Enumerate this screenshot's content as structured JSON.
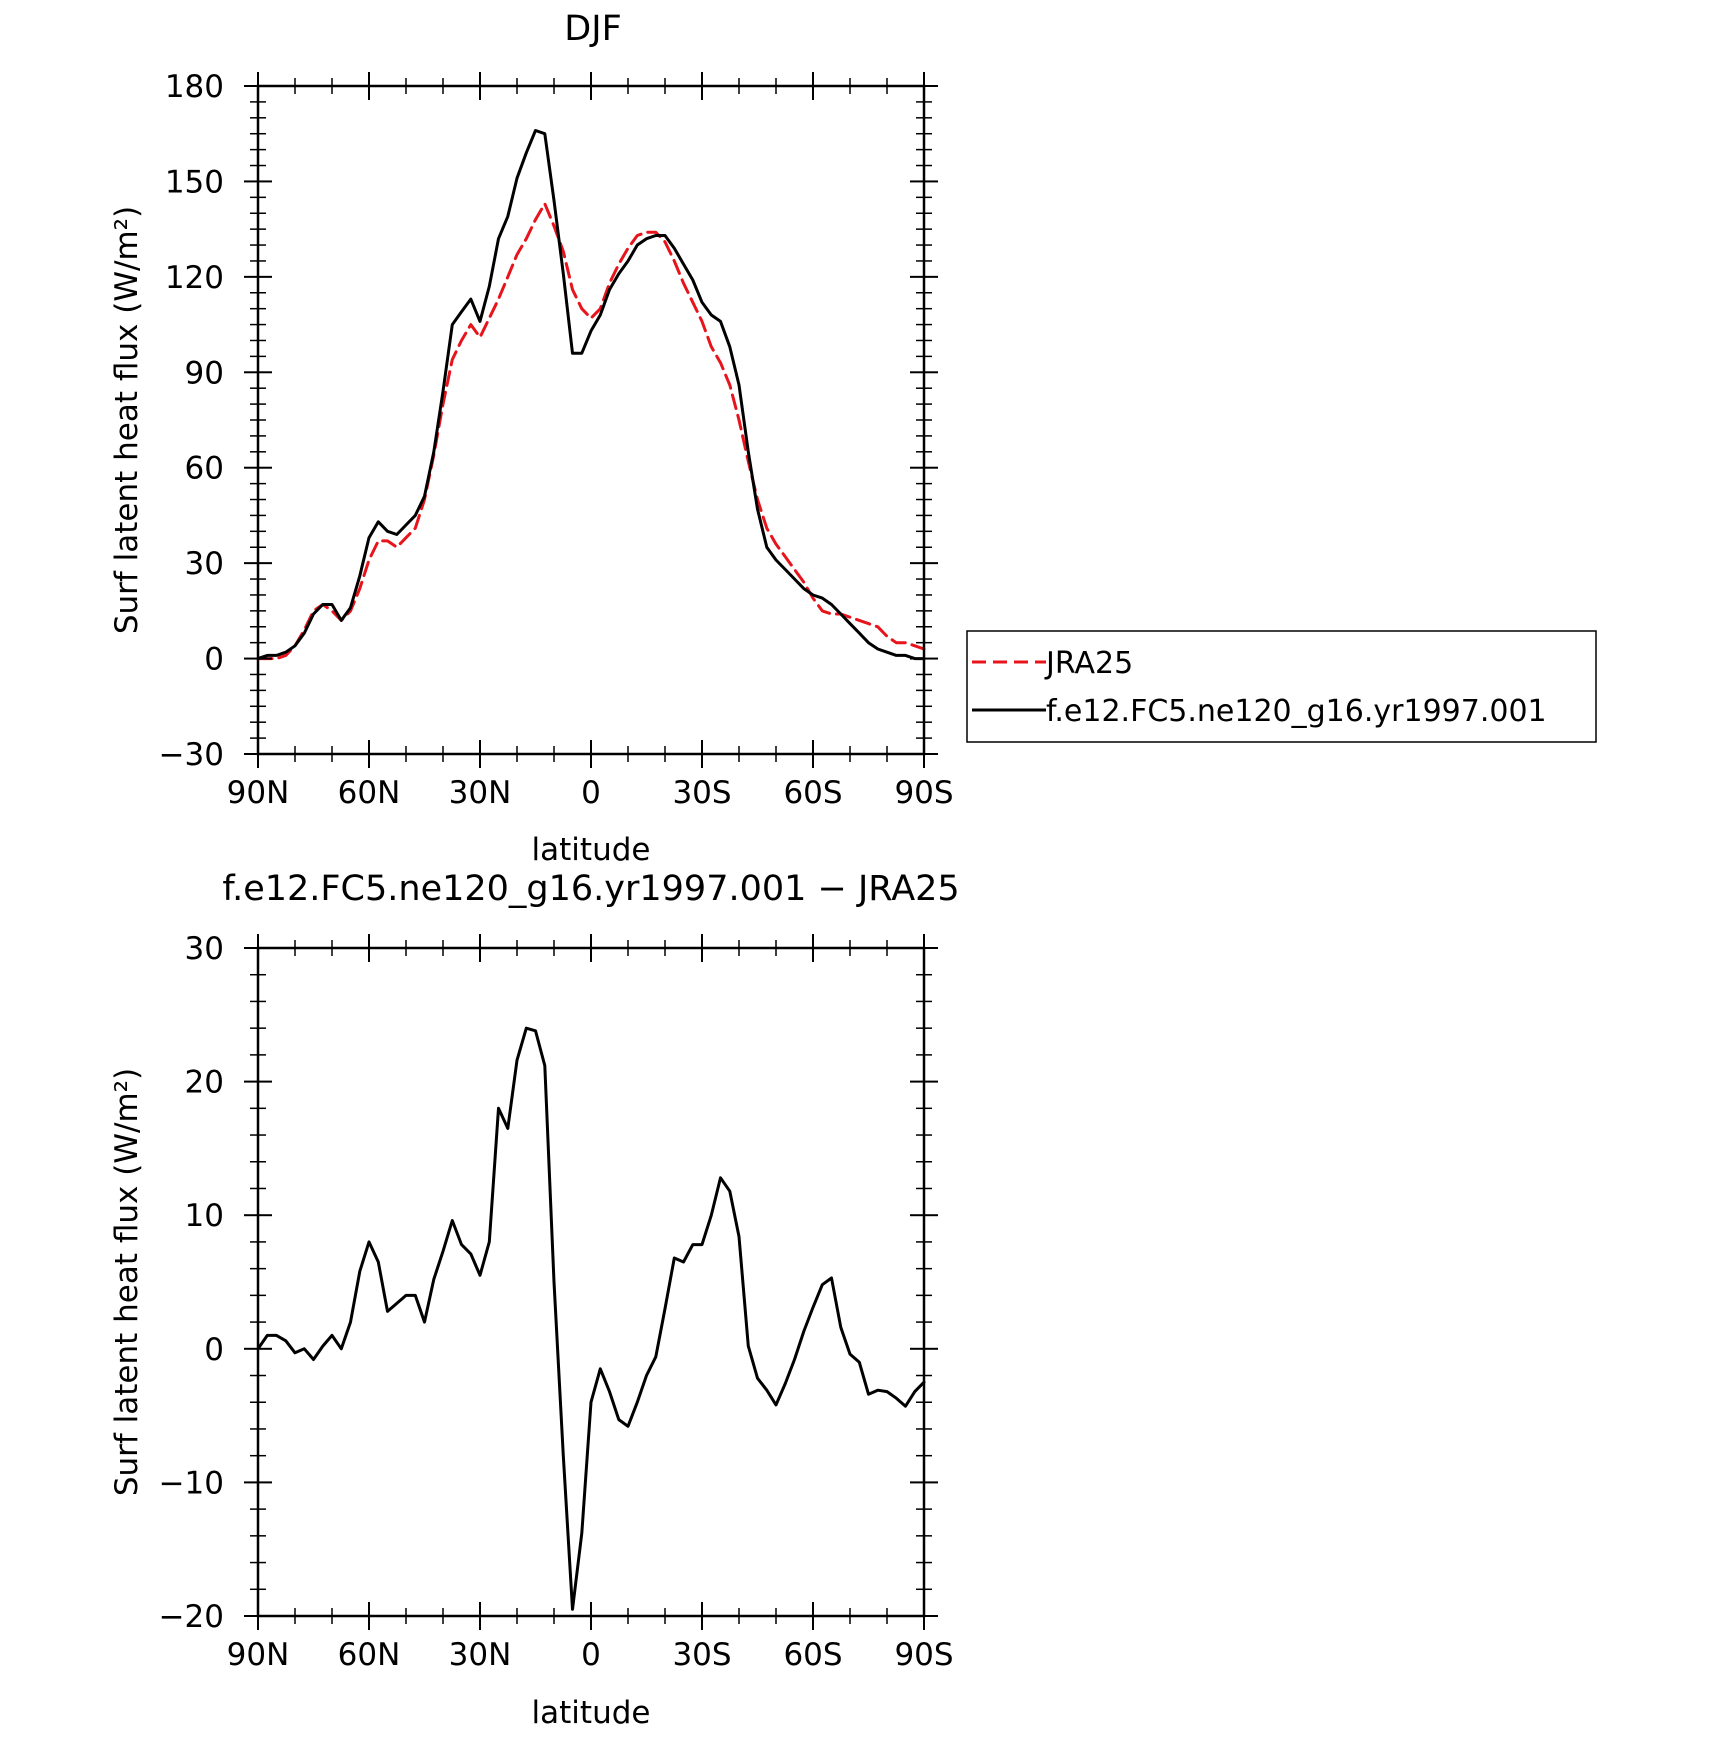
{
  "chart_data": [
    {
      "type": "line",
      "title": "DJF",
      "xlabel": "latitude",
      "ylabel": "Surf latent heat flux (W/m²)",
      "xlim": [
        90,
        -90
      ],
      "ylim": [
        -30,
        180
      ],
      "x_ticks": [
        90,
        60,
        30,
        0,
        -30,
        -60,
        -90
      ],
      "x_tick_labels": [
        "90N",
        "60N",
        "30N",
        "0",
        "30S",
        "60S",
        "90S"
      ],
      "y_ticks": [
        -30,
        0,
        30,
        60,
        90,
        120,
        150,
        180
      ],
      "y_tick_labels": [
        "−30",
        "0",
        "30",
        "60",
        "90",
        "120",
        "150",
        "180"
      ],
      "legend": {
        "placement": "right",
        "entries": [
          "JRA25",
          "f.e12.FC5.ne120_g16.yr1997.001"
        ]
      },
      "series": [
        {
          "name": "JRA25",
          "color": "#e8141c",
          "dash": true,
          "x": [
            90,
            87.5,
            85,
            82.5,
            80,
            77.5,
            75,
            72.5,
            70,
            67.5,
            65,
            62.5,
            60,
            57.5,
            55,
            52.5,
            50,
            47.5,
            45,
            42.5,
            40,
            37.5,
            35,
            32.5,
            30,
            27.5,
            25,
            22.5,
            20,
            17.5,
            15,
            12.5,
            10,
            7.5,
            5,
            2.5,
            0,
            -2.5,
            -5,
            -7.5,
            -10,
            -12.5,
            -15,
            -17.5,
            -20,
            -22.5,
            -25,
            -27.5,
            -30,
            -32.5,
            -35,
            -37.5,
            -40,
            -42.5,
            -45,
            -47.5,
            -50,
            -52.5,
            -55,
            -57.5,
            -60,
            -62.5,
            -65,
            -67.5,
            -70,
            -72.5,
            -75,
            -77.5,
            -80,
            -82.5,
            -85,
            -87.5,
            -90
          ],
          "y": [
            0,
            0,
            0,
            1,
            4,
            9,
            15,
            17,
            15,
            12,
            15,
            22,
            31,
            37,
            37,
            35,
            38,
            41,
            50,
            64,
            80,
            94,
            100,
            105,
            101,
            107,
            113,
            120,
            127,
            132,
            138,
            143,
            136,
            128,
            116,
            110,
            107,
            110,
            118,
            124,
            129,
            133,
            134,
            134,
            131,
            125,
            118,
            112,
            106,
            98,
            93,
            86,
            75,
            62,
            50,
            41,
            36,
            32,
            28,
            24,
            19,
            15,
            14,
            14,
            13,
            12,
            11,
            10,
            7,
            5,
            5,
            4,
            3
          ]
        },
        {
          "name": "f.e12.FC5.ne120_g16.yr1997.001",
          "color": "#000000",
          "dash": false,
          "x": [
            90,
            87.5,
            85,
            82.5,
            80,
            77.5,
            75,
            72.5,
            70,
            67.5,
            65,
            62.5,
            60,
            57.5,
            55,
            52.5,
            50,
            47.5,
            45,
            42.5,
            40,
            37.5,
            35,
            32.5,
            30,
            27.5,
            25,
            22.5,
            20,
            17.5,
            15,
            12.5,
            10,
            7.5,
            5,
            2.5,
            0,
            -2.5,
            -5,
            -7.5,
            -10,
            -12.5,
            -15,
            -17.5,
            -20,
            -22.5,
            -25,
            -27.5,
            -30,
            -32.5,
            -35,
            -37.5,
            -40,
            -42.5,
            -45,
            -47.5,
            -50,
            -52.5,
            -55,
            -57.5,
            -60,
            -62.5,
            -65,
            -67.5,
            -70,
            -72.5,
            -75,
            -77.5,
            -80,
            -82.5,
            -85,
            -87.5,
            -90
          ],
          "y": [
            0,
            1,
            1,
            2,
            4,
            8,
            14,
            17,
            17,
            12,
            16,
            26,
            38,
            43,
            40,
            39,
            42,
            45,
            51,
            65,
            84,
            105,
            109,
            113,
            106,
            117,
            132,
            139,
            151,
            159,
            166,
            165,
            144,
            121,
            96,
            96,
            103,
            108,
            116,
            121,
            125,
            130,
            132,
            133,
            133,
            129,
            124,
            119,
            112,
            108,
            106,
            98,
            86,
            65,
            47,
            35,
            31,
            28,
            25,
            22,
            20,
            19,
            17,
            14,
            11,
            8,
            5,
            3,
            2,
            1,
            1,
            0,
            0
          ]
        }
      ]
    },
    {
      "type": "line",
      "title": "f.e12.FC5.ne120_g16.yr1997.001 − JRA25",
      "xlabel": "latitude",
      "ylabel": "Surf latent heat flux (W/m²)",
      "xlim": [
        90,
        -90
      ],
      "ylim": [
        -20,
        30
      ],
      "x_ticks": [
        90,
        60,
        30,
        0,
        -30,
        -60,
        -90
      ],
      "x_tick_labels": [
        "90N",
        "60N",
        "30N",
        "0",
        "30S",
        "60S",
        "90S"
      ],
      "y_ticks": [
        -20,
        -10,
        0,
        10,
        20,
        30
      ],
      "y_tick_labels": [
        "−20",
        "−10",
        "0",
        "10",
        "20",
        "30"
      ],
      "series": [
        {
          "color": "#000000",
          "dash": false,
          "x": [
            90,
            87.5,
            85,
            82.5,
            80,
            77.5,
            75,
            72.5,
            70,
            67.5,
            65,
            62.5,
            60,
            57.5,
            55,
            52.5,
            50,
            47.5,
            45,
            42.5,
            40,
            37.5,
            35,
            32.5,
            30,
            27.5,
            25,
            22.5,
            20,
            17.5,
            15,
            12.5,
            10,
            7.5,
            5,
            2.5,
            0,
            -2.5,
            -5,
            -7.5,
            -10,
            -12.5,
            -15,
            -17.5,
            -20,
            -22.5,
            -25,
            -27.5,
            -30,
            -32.5,
            -35,
            -37.5,
            -40,
            -42.5,
            -45,
            -47.5,
            -50,
            -52.5,
            -55,
            -57.5,
            -60,
            -62.5,
            -65,
            -67.5,
            -70,
            -72.5,
            -75,
            -77.5,
            -80,
            -82.5,
            -85,
            -87.5,
            -90
          ],
          "y": [
            0,
            1,
            1,
            0.6,
            -0.3,
            0,
            -0.8,
            0.2,
            1,
            0,
            2,
            5.8,
            8,
            6.5,
            2.8,
            3.4,
            4,
            4,
            2,
            5.2,
            7.3,
            9.6,
            7.8,
            7.1,
            5.5,
            8,
            18,
            16.5,
            21.6,
            24,
            23.8,
            21.2,
            5,
            -8,
            -19.5,
            -13.8,
            -4,
            -1.5,
            -3.2,
            -5.3,
            -5.8,
            -4,
            -2,
            -0.6,
            3,
            6.8,
            6.5,
            7.8,
            7.8,
            10,
            12.8,
            11.8,
            8.4,
            0.2,
            -2.2,
            -3.1,
            -4.2,
            -2.6,
            -0.8,
            1.3,
            3.1,
            4.8,
            5.3,
            1.6,
            -0.4,
            -1,
            -3.4,
            -3.1,
            -3.2,
            -3.7,
            -4.3,
            -3.2,
            -2.5
          ]
        }
      ]
    }
  ]
}
